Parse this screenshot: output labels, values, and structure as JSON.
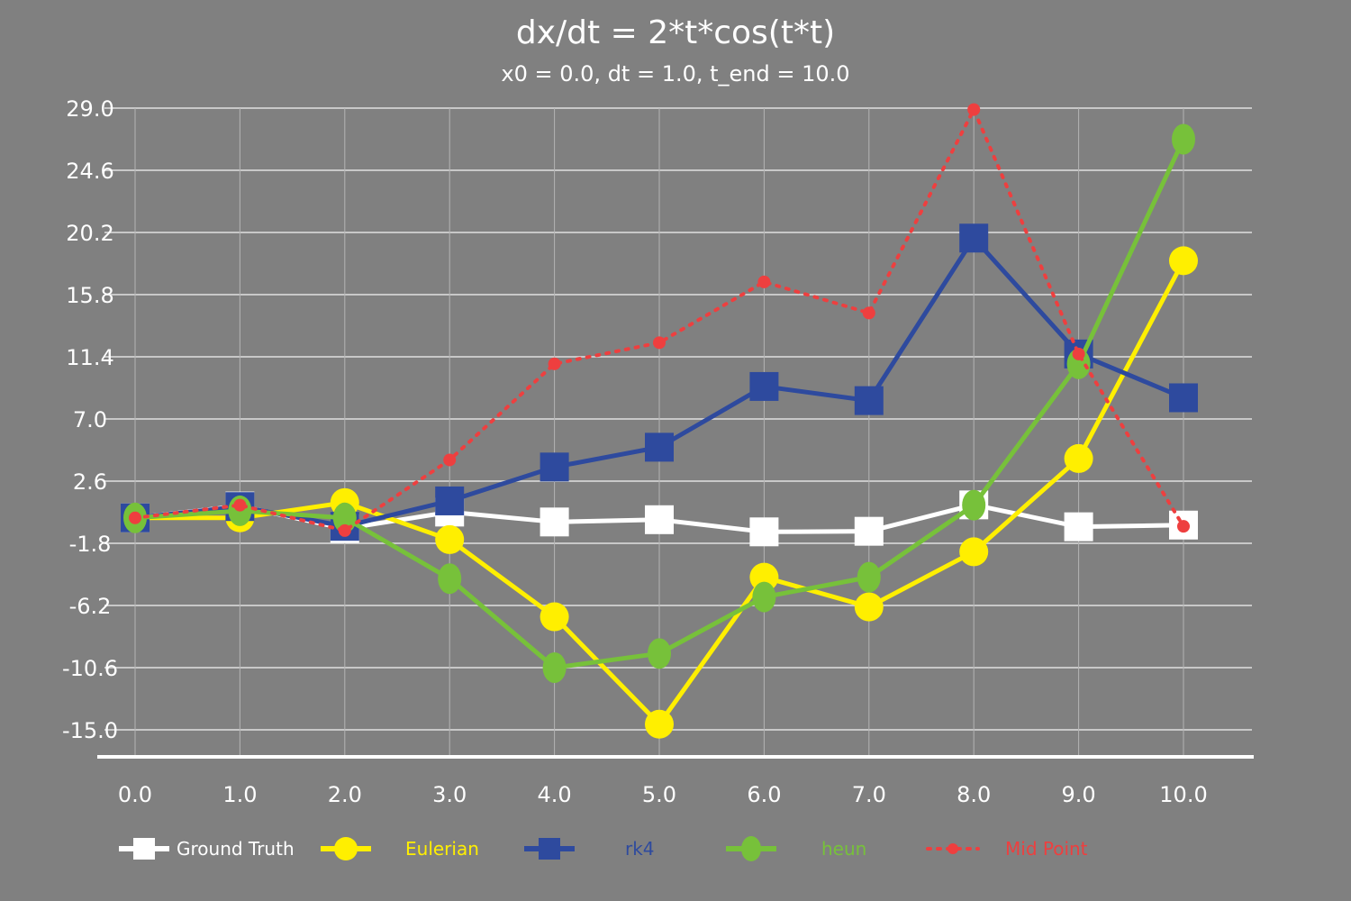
{
  "chart_data": {
    "type": "line",
    "title": "dx/dt = 2*t*cos(t*t)",
    "subtitle": "x0 = 0.0, dt = 1.0, t_end = 10.0",
    "xlabel": "",
    "ylabel": "",
    "x": [
      0,
      1,
      2,
      3,
      4,
      5,
      6,
      7,
      8,
      9,
      10
    ],
    "x_tick_labels": [
      "0.0",
      "1.0",
      "2.0",
      "3.0",
      "4.0",
      "5.0",
      "6.0",
      "7.0",
      "8.0",
      "9.0",
      "10.0"
    ],
    "y_tick_labels": [
      "29.0",
      "24.6",
      "20.2",
      "15.8",
      "11.4",
      "7.0",
      "2.6",
      "-1.8",
      "-6.2",
      "-10.6",
      "-15.0"
    ],
    "y_ticks": [
      29.0,
      24.6,
      20.2,
      15.8,
      11.4,
      7.0,
      2.6,
      -1.8,
      -6.2,
      -10.6,
      -15.0
    ],
    "ylim": [
      -15.0,
      29.0
    ],
    "xlim": [
      0,
      10
    ],
    "grid": true,
    "legend_position": "bottom",
    "series": [
      {
        "name": "Ground Truth",
        "color": "#ffffff",
        "line_style": "solid",
        "marker": "square",
        "values": [
          0.0,
          0.84,
          -0.76,
          0.41,
          -0.29,
          -0.13,
          -0.99,
          -0.95,
          0.92,
          -0.63,
          -0.51
        ]
      },
      {
        "name": "Eulerian",
        "color": "#ffef00",
        "line_style": "solid",
        "marker": "circle",
        "values": [
          0.0,
          0.0,
          1.08,
          -1.54,
          -7.0,
          -14.6,
          -4.2,
          -6.3,
          -2.4,
          4.2,
          18.2
        ]
      },
      {
        "name": "rk4",
        "color": "#2e4a9e",
        "line_style": "solid",
        "marker": "square",
        "values": [
          0.0,
          0.8,
          -0.6,
          1.2,
          3.6,
          5.0,
          9.3,
          8.3,
          19.8,
          11.6,
          8.5
        ]
      },
      {
        "name": "heun",
        "color": "#77c13a",
        "line_style": "solid",
        "marker": "ellipse",
        "values": [
          0.0,
          0.5,
          0.0,
          -4.3,
          -10.6,
          -9.6,
          -5.6,
          -4.2,
          0.9,
          10.9,
          26.8
        ]
      },
      {
        "name": "Mid Point",
        "color": "#ee3f3f",
        "line_style": "dotted",
        "marker": "dot",
        "values": [
          0.0,
          0.9,
          -0.9,
          4.1,
          10.9,
          12.4,
          16.7,
          14.5,
          28.9,
          11.6,
          -0.6
        ]
      }
    ]
  }
}
